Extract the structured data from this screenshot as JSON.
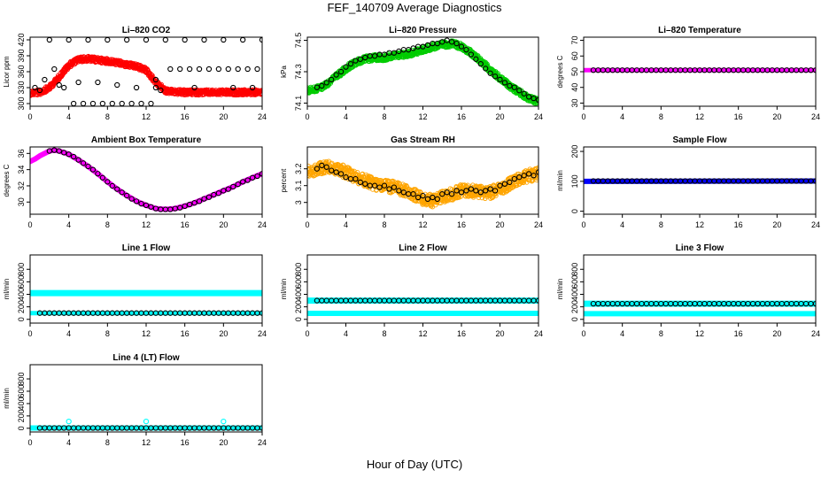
{
  "page": {
    "title": "FEF_140709  Average Diagnostics",
    "xlabel": "Hour of Day (UTC)"
  },
  "colors": {
    "red": "#ff0000",
    "green": "#00cc00",
    "magenta": "#ff00ff",
    "orange": "#ffa500",
    "blue": "#0000ff",
    "cyan": "#00ffff",
    "black": "#000000"
  },
  "chart_data": [
    {
      "type": "scatter",
      "title": "Li–820 CO2",
      "ylabel": "Licor ppm",
      "xlim": [
        0,
        24
      ],
      "ylim": [
        295,
        425
      ],
      "xticks": [
        0,
        4,
        8,
        12,
        16,
        20,
        24
      ],
      "yticks": [
        300,
        330,
        360,
        390,
        420
      ],
      "series": [
        {
          "color": "red",
          "style": "dense",
          "band": 6,
          "x": [
            0,
            1,
            2,
            3,
            4,
            5,
            6,
            7,
            8,
            9,
            10,
            11,
            12,
            13,
            14,
            15,
            16,
            17,
            18,
            19,
            20,
            21,
            22,
            23,
            24
          ],
          "y": [
            320,
            321,
            330,
            350,
            372,
            383,
            384,
            382,
            380,
            377,
            373,
            370,
            363,
            340,
            324,
            322,
            321,
            321,
            321,
            321,
            321,
            321,
            321,
            321,
            322
          ]
        },
        {
          "color": "black",
          "style": "circle",
          "x": [
            0.5,
            1.5,
            2.5,
            3.5,
            4.5,
            5.5,
            6.5,
            7.5,
            8.5,
            9.5,
            10.5,
            11.5,
            12.5,
            13.5,
            14.5,
            15.5,
            16.5,
            17.5,
            18.5,
            19.5,
            20.5,
            21.5,
            22.5,
            23.5,
            2,
            4,
            6,
            8,
            10,
            12,
            14,
            16,
            18,
            20,
            22,
            24,
            3,
            5,
            7,
            9,
            11,
            13,
            1,
            13,
            17,
            21,
            23
          ],
          "y": [
            330,
            345,
            365,
            330,
            300,
            300,
            300,
            300,
            300,
            300,
            300,
            300,
            300,
            325,
            365,
            365,
            365,
            365,
            365,
            365,
            365,
            365,
            365,
            365,
            420,
            420,
            420,
            420,
            420,
            420,
            420,
            420,
            420,
            420,
            420,
            420,
            335,
            340,
            340,
            335,
            330,
            330,
            325,
            345,
            330,
            330,
            330
          ]
        }
      ]
    },
    {
      "type": "scatter",
      "title": "Li–820 Pressure",
      "ylabel": "kPa",
      "xlim": [
        0,
        24
      ],
      "ylim": [
        74.08,
        74.52
      ],
      "xticks": [
        0,
        4,
        8,
        12,
        16,
        20,
        24
      ],
      "yticks": [
        74.1,
        74.3,
        74.5
      ],
      "series": [
        {
          "color": "green",
          "style": "dense",
          "band": 7,
          "x": [
            0,
            1,
            2,
            3,
            4,
            5,
            6,
            7,
            8,
            9,
            10,
            11,
            12,
            13,
            14,
            15,
            16,
            17,
            18,
            19,
            20,
            21,
            22,
            23,
            24
          ],
          "y": [
            74.18,
            74.19,
            74.22,
            74.27,
            74.32,
            74.36,
            74.38,
            74.39,
            74.39,
            74.4,
            74.41,
            74.42,
            74.44,
            74.46,
            74.47,
            74.48,
            74.46,
            74.42,
            74.37,
            74.31,
            74.26,
            74.21,
            74.17,
            74.13,
            74.11
          ]
        },
        {
          "color": "black",
          "style": "circle",
          "x": [
            1,
            1.5,
            2,
            2.5,
            3,
            3.5,
            4,
            4.5,
            5,
            5.5,
            6,
            6.5,
            7,
            7.5,
            8,
            8.5,
            9,
            9.5,
            10,
            10.5,
            11,
            11.5,
            12,
            12.5,
            13,
            13.5,
            14,
            14.5,
            15,
            15.5,
            16,
            16.5,
            17,
            17.5,
            18,
            18.5,
            19,
            19.5,
            20,
            20.5,
            21,
            21.5,
            22,
            22.5,
            23,
            23.5,
            24
          ],
          "y": [
            74.2,
            74.21,
            74.23,
            74.25,
            74.28,
            74.3,
            74.33,
            74.35,
            74.37,
            74.38,
            74.39,
            74.4,
            74.4,
            74.41,
            74.41,
            74.42,
            74.42,
            74.43,
            74.44,
            74.44,
            74.45,
            74.46,
            74.46,
            74.47,
            74.48,
            74.48,
            74.49,
            74.5,
            74.49,
            74.48,
            74.46,
            74.44,
            74.41,
            74.38,
            74.35,
            74.32,
            74.29,
            74.27,
            74.25,
            74.23,
            74.21,
            74.2,
            74.18,
            74.16,
            74.14,
            74.13,
            74.12
          ]
        }
      ]
    },
    {
      "type": "scatter",
      "title": "Li–820 Temperature",
      "ylabel": "degrees C",
      "xlim": [
        0,
        24
      ],
      "ylim": [
        28,
        72
      ],
      "xticks": [
        0,
        4,
        8,
        12,
        16,
        20,
        24
      ],
      "yticks": [
        30,
        40,
        50,
        60,
        70
      ],
      "series": [
        {
          "color": "magenta",
          "style": "line",
          "width": 5,
          "x": [
            0,
            24
          ],
          "y": [
            51,
            51
          ]
        },
        {
          "color": "black",
          "style": "circle",
          "every": 0.5,
          "from": 1,
          "to": 24,
          "const": 51
        }
      ]
    },
    {
      "type": "scatter",
      "title": "Ambient Box Temperature",
      "ylabel": "degrees C",
      "xlim": [
        0,
        24
      ],
      "ylim": [
        28.5,
        36.8
      ],
      "xticks": [
        0,
        4,
        8,
        12,
        16,
        20,
        24
      ],
      "yticks": [
        30,
        32,
        34,
        36
      ],
      "series": [
        {
          "color": "magenta",
          "style": "line",
          "width": 6,
          "x": [
            0,
            0.5,
            1,
            1.5,
            2,
            2.5,
            3,
            4,
            5,
            6,
            7,
            8,
            9,
            10,
            11,
            12,
            13,
            14,
            15,
            16,
            17,
            18,
            19,
            20,
            21,
            22,
            23,
            24
          ],
          "y": [
            35.0,
            35.3,
            35.7,
            36.0,
            36.3,
            36.4,
            36.3,
            35.9,
            35.2,
            34.4,
            33.5,
            32.5,
            31.6,
            30.8,
            30.1,
            29.6,
            29.2,
            29.1,
            29.2,
            29.5,
            29.9,
            30.4,
            30.9,
            31.4,
            31.9,
            32.5,
            33.0,
            33.5
          ]
        },
        {
          "color": "black",
          "style": "circle",
          "x": [
            2,
            2.5,
            3,
            3.5,
            4,
            4.5,
            5,
            5.5,
            6,
            6.5,
            7,
            7.5,
            8,
            8.5,
            9,
            9.5,
            10,
            10.5,
            11,
            11.5,
            12,
            12.5,
            13,
            13.5,
            14,
            14.5,
            15,
            15.5,
            16,
            16.5,
            17,
            17.5,
            18,
            18.5,
            19,
            19.5,
            20,
            20.5,
            21,
            21.5,
            22,
            22.5,
            23,
            23.5,
            24
          ],
          "y": [
            36.3,
            36.4,
            36.3,
            36.1,
            35.9,
            35.6,
            35.2,
            34.8,
            34.4,
            34.0,
            33.5,
            33.0,
            32.5,
            32.0,
            31.6,
            31.2,
            30.8,
            30.4,
            30.1,
            29.8,
            29.6,
            29.4,
            29.2,
            29.1,
            29.1,
            29.1,
            29.2,
            29.3,
            29.5,
            29.7,
            29.9,
            30.1,
            30.4,
            30.6,
            30.9,
            31.1,
            31.4,
            31.6,
            31.9,
            32.2,
            32.5,
            32.7,
            33.0,
            33.2,
            33.5
          ]
        }
      ]
    },
    {
      "type": "scatter",
      "title": "Gas Stream RH",
      "ylabel": "percent",
      "xlim": [
        0,
        24
      ],
      "ylim": [
        2.93,
        3.33
      ],
      "xticks": [
        0,
        4,
        8,
        12,
        16,
        20,
        24
      ],
      "yticks": [
        3.0,
        3.1,
        3.2
      ],
      "series": [
        {
          "color": "orange",
          "style": "dense",
          "band": 14,
          "x": [
            0,
            1,
            2,
            3,
            4,
            5,
            6,
            7,
            8,
            9,
            10,
            11,
            12,
            13,
            14,
            15,
            16,
            17,
            18,
            19,
            20,
            21,
            22,
            23,
            24
          ],
          "y": [
            3.18,
            3.2,
            3.21,
            3.2,
            3.18,
            3.15,
            3.13,
            3.11,
            3.1,
            3.09,
            3.07,
            3.05,
            3.02,
            3.01,
            3.03,
            3.05,
            3.07,
            3.07,
            3.06,
            3.06,
            3.08,
            3.11,
            3.14,
            3.16,
            3.17
          ]
        },
        {
          "color": "black",
          "style": "circle",
          "x": [
            1,
            1.5,
            2,
            2.5,
            3,
            3.5,
            4,
            4.5,
            5,
            5.5,
            6,
            6.5,
            7,
            7.5,
            8,
            8.5,
            9,
            9.5,
            10,
            10.5,
            11,
            11.5,
            12,
            12.5,
            13,
            13.5,
            14,
            14.5,
            15,
            15.5,
            16,
            16.5,
            17,
            17.5,
            18,
            18.5,
            19,
            19.5,
            20,
            20.5,
            21,
            21.5,
            22,
            22.5,
            23,
            23.5,
            24
          ],
          "y": [
            3.2,
            3.22,
            3.21,
            3.19,
            3.18,
            3.17,
            3.15,
            3.14,
            3.14,
            3.12,
            3.11,
            3.1,
            3.1,
            3.09,
            3.1,
            3.08,
            3.09,
            3.07,
            3.06,
            3.05,
            3.05,
            3.03,
            3.04,
            3.02,
            3.03,
            3.02,
            3.05,
            3.06,
            3.05,
            3.07,
            3.06,
            3.07,
            3.08,
            3.07,
            3.06,
            3.07,
            3.08,
            3.07,
            3.1,
            3.11,
            3.12,
            3.14,
            3.15,
            3.16,
            3.17,
            3.16,
            3.18
          ]
        }
      ]
    },
    {
      "type": "scatter",
      "title": "Sample Flow",
      "ylabel": "ml/min",
      "xlim": [
        0,
        24
      ],
      "ylim": [
        -10,
        215
      ],
      "xticks": [
        0,
        4,
        8,
        12,
        16,
        20,
        24
      ],
      "yticks": [
        0,
        100,
        200
      ],
      "series": [
        {
          "color": "blue",
          "style": "line",
          "width": 6,
          "x": [
            0,
            24
          ],
          "y": [
            100,
            101
          ]
        },
        {
          "color": "black",
          "style": "circle",
          "every": 0.5,
          "from": 1,
          "to": 24,
          "const": 101
        }
      ]
    },
    {
      "type": "scatter",
      "title": "Line 1 Flow",
      "ylabel": "ml/min",
      "xlim": [
        0,
        24
      ],
      "ylim": [
        -60,
        1030
      ],
      "xticks": [
        0,
        4,
        8,
        12,
        16,
        20,
        24
      ],
      "yticks": [
        0,
        200,
        400,
        600,
        800
      ],
      "series": [
        {
          "color": "cyan",
          "style": "line",
          "width": 7,
          "x": [
            0,
            24
          ],
          "y": [
            420,
            420
          ]
        },
        {
          "color": "cyan",
          "style": "line",
          "width": 5,
          "x": [
            0,
            24
          ],
          "y": [
            100,
            100
          ]
        },
        {
          "color": "black",
          "style": "circle",
          "every": 0.5,
          "from": 1,
          "to": 24,
          "const": 100
        }
      ]
    },
    {
      "type": "scatter",
      "title": "Line 2 Flow",
      "ylabel": "ml/min",
      "xlim": [
        0,
        24
      ],
      "ylim": [
        -60,
        1030
      ],
      "xticks": [
        0,
        4,
        8,
        12,
        16,
        20,
        24
      ],
      "yticks": [
        0,
        200,
        400,
        600,
        800
      ],
      "series": [
        {
          "color": "cyan",
          "style": "line",
          "width": 7,
          "x": [
            0,
            24
          ],
          "y": [
            300,
            300
          ]
        },
        {
          "color": "cyan",
          "style": "line",
          "width": 6,
          "x": [
            0,
            24
          ],
          "y": [
            95,
            95
          ]
        },
        {
          "color": "black",
          "style": "circle",
          "every": 0.5,
          "from": 1,
          "to": 24,
          "const": 300
        }
      ]
    },
    {
      "type": "scatter",
      "title": "Line 3 Flow",
      "ylabel": "ml/min",
      "xlim": [
        0,
        24
      ],
      "ylim": [
        -60,
        1030
      ],
      "xticks": [
        0,
        4,
        8,
        12,
        16,
        20,
        24
      ],
      "yticks": [
        0,
        200,
        400,
        600,
        800
      ],
      "series": [
        {
          "color": "cyan",
          "style": "line",
          "width": 7,
          "x": [
            0,
            24
          ],
          "y": [
            250,
            250
          ]
        },
        {
          "color": "cyan",
          "style": "line",
          "width": 6,
          "x": [
            0,
            24
          ],
          "y": [
            90,
            90
          ]
        },
        {
          "color": "black",
          "style": "circle",
          "every": 0.5,
          "from": 1,
          "to": 24,
          "const": 250
        }
      ]
    },
    {
      "type": "scatter",
      "title": "Line 4 (LT) Flow",
      "ylabel": "ml/min",
      "xlim": [
        0,
        24
      ],
      "ylim": [
        -60,
        1030
      ],
      "xticks": [
        0,
        4,
        8,
        12,
        16,
        20,
        24
      ],
      "yticks": [
        0,
        200,
        400,
        600,
        800
      ],
      "series": [
        {
          "color": "cyan",
          "style": "line",
          "width": 6,
          "x": [
            0,
            24
          ],
          "y": [
            5,
            5
          ]
        },
        {
          "color": "cyan",
          "style": "circle",
          "x": [
            4,
            12,
            20
          ],
          "y": [
            110,
            110,
            110
          ]
        },
        {
          "color": "black",
          "style": "circle",
          "every": 0.5,
          "from": 1,
          "to": 24,
          "const": 5
        }
      ]
    }
  ]
}
